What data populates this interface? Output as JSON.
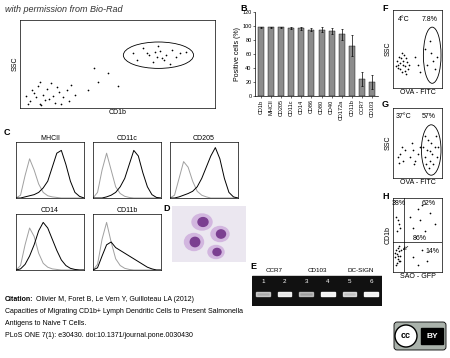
{
  "watermark": "with permission from Bio-Rad",
  "panel_labels": [
    "B",
    "C",
    "D",
    "E",
    "F",
    "G",
    "H"
  ],
  "chart_data": [
    {
      "type": "scatter",
      "x_label": "CD1b",
      "y_label": "SSC",
      "xlim": [
        0,
        100
      ],
      "ylim": [
        0,
        100
      ],
      "tick_labels": false,
      "color": "#000000",
      "x": [
        5,
        8,
        10,
        12,
        15,
        6,
        18,
        20,
        3,
        14,
        22,
        9,
        25,
        16,
        11,
        7,
        19,
        24,
        13,
        4,
        28,
        17,
        21,
        10,
        26,
        60,
        65,
        70,
        72,
        75,
        68,
        78,
        80,
        63,
        74,
        82,
        66,
        71,
        77,
        85,
        58,
        69,
        73,
        35,
        40,
        45,
        50,
        38
      ],
      "y": [
        8,
        12,
        5,
        15,
        10,
        20,
        6,
        18,
        14,
        22,
        12,
        25,
        8,
        28,
        3,
        17,
        24,
        20,
        9,
        4,
        15,
        14,
        4,
        30,
        26,
        55,
        62,
        58,
        65,
        60,
        52,
        66,
        58,
        68,
        54,
        62,
        60,
        70,
        50,
        64,
        62,
        64,
        57,
        20,
        30,
        40,
        25,
        45
      ],
      "gate_ellipse": {
        "x": 71,
        "y": 60,
        "width": 36,
        "height": 30
      }
    },
    {
      "type": "bar",
      "y_label": "Positive cells (%)",
      "categories": [
        "CD1b",
        "MHCII",
        "CD205",
        "CD11c",
        "CD14",
        "CD86",
        "CD80",
        "CD40",
        "CD172a",
        "CD11b",
        "CCR7",
        "CD103"
      ],
      "values": [
        98,
        98,
        98,
        97,
        97,
        95,
        95,
        93,
        88,
        72,
        25,
        20
      ],
      "errors": [
        1,
        1,
        1,
        1,
        2,
        2,
        3,
        4,
        8,
        15,
        10,
        10
      ],
      "color": "#8c8c8c",
      "ylim": [
        0,
        120
      ],
      "yticks": [
        0,
        20,
        40,
        60,
        80,
        100,
        120
      ]
    },
    {
      "type": "line",
      "title": "MHCII",
      "x": [
        0,
        1,
        2,
        3,
        4,
        5,
        6,
        7,
        8,
        9,
        10,
        11,
        12,
        13,
        14,
        15
      ],
      "xlim": [
        0,
        15
      ],
      "ylim": [
        0,
        100
      ],
      "tick_labels": false,
      "series": [
        {
          "color": "#a0a0a0",
          "values": [
            0,
            5,
            40,
            70,
            50,
            25,
            10,
            4,
            2,
            1,
            0,
            0,
            0,
            0,
            0,
            0
          ]
        },
        {
          "color": "#000000",
          "values": [
            0,
            0,
            2,
            4,
            6,
            10,
            18,
            30,
            55,
            80,
            85,
            60,
            30,
            10,
            3,
            0
          ]
        }
      ]
    },
    {
      "type": "line",
      "title": "CD11c",
      "x": [
        0,
        1,
        2,
        3,
        4,
        5,
        6,
        7,
        8,
        9,
        10,
        11,
        12,
        13,
        14,
        15
      ],
      "xlim": [
        0,
        15
      ],
      "ylim": [
        0,
        100
      ],
      "tick_labels": false,
      "series": [
        {
          "color": "#a0a0a0",
          "values": [
            0,
            10,
            50,
            80,
            50,
            20,
            8,
            3,
            1,
            0,
            0,
            0,
            0,
            0,
            0,
            0
          ]
        },
        {
          "color": "#000000",
          "values": [
            0,
            0,
            0,
            2,
            5,
            10,
            20,
            35,
            60,
            85,
            75,
            45,
            20,
            6,
            1,
            0
          ]
        }
      ]
    },
    {
      "type": "line",
      "title": "CD205",
      "x": [
        0,
        1,
        2,
        3,
        4,
        5,
        6,
        7,
        8,
        9,
        10,
        11,
        12,
        13,
        14,
        15
      ],
      "xlim": [
        0,
        15
      ],
      "ylim": [
        0,
        100
      ],
      "tick_labels": false,
      "series": [
        {
          "color": "#a0a0a0",
          "values": [
            0,
            5,
            35,
            65,
            55,
            30,
            12,
            5,
            2,
            0,
            0,
            0,
            0,
            0,
            0,
            0
          ]
        },
        {
          "color": "#000000",
          "values": [
            0,
            0,
            2,
            5,
            8,
            12,
            20,
            35,
            55,
            75,
            90,
            70,
            35,
            10,
            2,
            0
          ]
        }
      ]
    },
    {
      "type": "line",
      "title": "CD14",
      "x": [
        0,
        1,
        2,
        3,
        4,
        5,
        6,
        7,
        8,
        9,
        10,
        11,
        12,
        13,
        14,
        15
      ],
      "xlim": [
        0,
        15
      ],
      "ylim": [
        0,
        100
      ],
      "tick_labels": false,
      "series": [
        {
          "color": "#a0a0a0",
          "values": [
            0,
            8,
            45,
            75,
            60,
            30,
            12,
            5,
            2,
            1,
            0,
            0,
            0,
            0,
            0,
            0
          ]
        },
        {
          "color": "#000000",
          "values": [
            0,
            2,
            10,
            25,
            45,
            70,
            85,
            75,
            55,
            35,
            18,
            8,
            3,
            1,
            0,
            0
          ]
        }
      ]
    },
    {
      "type": "line",
      "title": "CD11b",
      "x": [
        0,
        1,
        2,
        3,
        4,
        5,
        6,
        7,
        8,
        9,
        10,
        11,
        12,
        13,
        14,
        15
      ],
      "xlim": [
        0,
        15
      ],
      "ylim": [
        0,
        100
      ],
      "tick_labels": false,
      "series": [
        {
          "color": "#a0a0a0",
          "values": [
            0,
            10,
            55,
            85,
            50,
            20,
            8,
            3,
            1,
            0,
            0,
            0,
            0,
            0,
            0,
            0
          ]
        },
        {
          "color": "#000000",
          "values": [
            0,
            4,
            25,
            45,
            50,
            40,
            35,
            30,
            25,
            20,
            15,
            10,
            5,
            2,
            0,
            0
          ]
        }
      ]
    },
    {
      "type": "scatter",
      "x_label": "OVA - FITC",
      "y_label": "SSC",
      "xlim": [
        0,
        100
      ],
      "ylim": [
        0,
        100
      ],
      "tick_labels": false,
      "color": "#000000",
      "x": [
        10,
        15,
        20,
        12,
        25,
        18,
        8,
        22,
        28,
        14,
        30,
        16,
        24,
        11,
        20,
        26,
        32,
        6,
        19,
        27,
        70,
        78,
        85,
        75,
        90,
        65,
        82,
        50,
        45,
        55
      ],
      "y": [
        30,
        25,
        35,
        40,
        28,
        20,
        35,
        42,
        33,
        32,
        25,
        38,
        22,
        26,
        30,
        38,
        30,
        28,
        45,
        18,
        30,
        45,
        25,
        60,
        40,
        50,
        35,
        30,
        40,
        20
      ],
      "gate_ellipse": {
        "x": 80,
        "y": 42,
        "width": 36,
        "height": 72
      },
      "annotations": [
        {
          "text": "4°C",
          "x": 22,
          "y": 88
        },
        {
          "text": "7.8%",
          "x": 74,
          "y": 88
        }
      ]
    },
    {
      "type": "scatter",
      "x_label": "OVA - FITC",
      "y_label": "SSC",
      "xlim": [
        0,
        100
      ],
      "ylim": [
        0,
        100
      ],
      "tick_labels": false,
      "color": "#000000",
      "x": [
        10,
        15,
        20,
        25,
        12,
        18,
        35,
        40,
        45,
        50,
        38,
        55,
        42,
        65,
        70,
        75,
        80,
        85,
        72,
        90,
        68,
        78,
        88,
        62,
        82,
        76,
        66,
        92,
        74
      ],
      "y": [
        30,
        35,
        25,
        40,
        22,
        45,
        30,
        40,
        25,
        35,
        50,
        45,
        20,
        30,
        40,
        25,
        35,
        45,
        55,
        30,
        20,
        50,
        60,
        45,
        20,
        38,
        60,
        45,
        15
      ],
      "gate_ellipse": {
        "x": 78,
        "y": 40,
        "width": 40,
        "height": 72
      },
      "annotations": [
        {
          "text": "37°C",
          "x": 22,
          "y": 88
        },
        {
          "text": "57%",
          "x": 72,
          "y": 88
        }
      ]
    },
    {
      "type": "scatter",
      "x_label": "SAO - GFP",
      "y_label": "CD1b",
      "xlim": [
        0,
        100
      ],
      "ylim": [
        0,
        100
      ],
      "tick_labels": false,
      "color": "#000000",
      "x": [
        5,
        8,
        10,
        12,
        6,
        14,
        9,
        11,
        15,
        7,
        13,
        4,
        16,
        10,
        12,
        8,
        12,
        6,
        15,
        10,
        40,
        55,
        65,
        75,
        50,
        85,
        35,
        60,
        40,
        60,
        70,
        50
      ],
      "y": [
        20,
        25,
        18,
        28,
        30,
        22,
        12,
        32,
        15,
        10,
        35,
        26,
        30,
        22,
        15,
        55,
        65,
        75,
        60,
        70,
        60,
        70,
        55,
        80,
        85,
        65,
        75,
        90,
        20,
        30,
        15,
        10
      ],
      "quadrant": {
        "x": 22,
        "y": 40
      },
      "annotations": [
        {
          "text": "38%",
          "x": 11,
          "y": 92
        },
        {
          "text": "62%",
          "x": 72,
          "y": 92
        },
        {
          "text": "14%",
          "x": 80,
          "y": 28
        },
        {
          "text": "86%",
          "x": 55,
          "y": 45,
          "arrow_to": [
            15,
            28
          ]
        }
      ]
    }
  ],
  "gel": {
    "genes": [
      "CCR7",
      "CD103",
      "DC-SIGN"
    ],
    "lanes": [
      "1",
      "2",
      "3",
      "4",
      "5",
      "6"
    ]
  },
  "citation": {
    "label": "Citation:",
    "lines": [
      "Olivier M, Foret B, Le Vern Y, Guilloteau LA (2012)",
      "Capacities of Migrating CD1b+ Lymph Dendritic Cells to Present Salmonella",
      "Antigens to Naive T Cells.",
      "PLoS ONE 7(1): e30430. doi:10.1371/journal.pone.0030430"
    ]
  },
  "license": [
    "cc",
    "BY"
  ]
}
